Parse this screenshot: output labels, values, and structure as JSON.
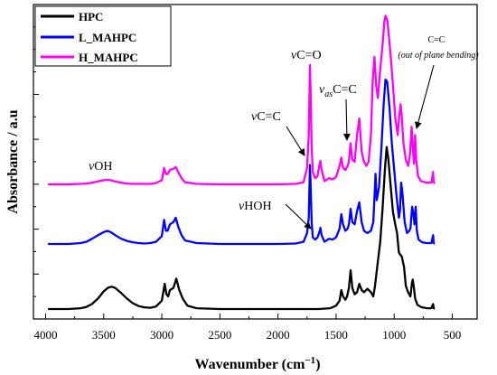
{
  "chart_data": {
    "type": "line",
    "title": "",
    "xlabel": "Wavenumber (cm",
    "xlabel_sup": "−1",
    "xlabel_close": ")",
    "ylabel": "Absorbance / a.u",
    "xlim": [
      4000,
      600
    ],
    "x_reversed": true,
    "x_ticks": [
      "4000",
      "3500",
      "3000",
      "2500",
      "2000",
      "1500",
      "1000",
      "500"
    ],
    "y_tick_labels": false,
    "legend_placement": "top-left",
    "series": [
      {
        "name": "HPC",
        "color": "#000000",
        "points": [
          [
            3980,
            0.0
          ],
          [
            3800,
            0.0
          ],
          [
            3700,
            0.02
          ],
          [
            3650,
            0.05
          ],
          [
            3600,
            0.12
          ],
          [
            3550,
            0.25
          ],
          [
            3500,
            0.42
          ],
          [
            3460,
            0.51
          ],
          [
            3430,
            0.53
          ],
          [
            3400,
            0.5
          ],
          [
            3350,
            0.38
          ],
          [
            3300,
            0.25
          ],
          [
            3250,
            0.14
          ],
          [
            3200,
            0.07
          ],
          [
            3150,
            0.04
          ],
          [
            3100,
            0.03
          ],
          [
            3050,
            0.06
          ],
          [
            3000,
            0.2
          ],
          [
            2975,
            0.6
          ],
          [
            2960,
            0.35
          ],
          [
            2945,
            0.3
          ],
          [
            2930,
            0.45
          ],
          [
            2900,
            0.5
          ],
          [
            2875,
            0.72
          ],
          [
            2850,
            0.45
          ],
          [
            2820,
            0.25
          ],
          [
            2780,
            0.08
          ],
          [
            2700,
            0.02
          ],
          [
            2500,
            0.0
          ],
          [
            2200,
            0.0
          ],
          [
            2000,
            0.0
          ],
          [
            1800,
            0.0
          ],
          [
            1650,
            0.0
          ],
          [
            1550,
            0.02
          ],
          [
            1500,
            0.08
          ],
          [
            1470,
            0.2
          ],
          [
            1455,
            0.45
          ],
          [
            1440,
            0.3
          ],
          [
            1420,
            0.22
          ],
          [
            1405,
            0.3
          ],
          [
            1390,
            0.5
          ],
          [
            1375,
            0.92
          ],
          [
            1360,
            0.5
          ],
          [
            1340,
            0.35
          ],
          [
            1320,
            0.4
          ],
          [
            1300,
            0.6
          ],
          [
            1280,
            0.45
          ],
          [
            1260,
            0.4
          ],
          [
            1230,
            0.48
          ],
          [
            1200,
            0.4
          ],
          [
            1180,
            0.3
          ],
          [
            1165,
            0.55
          ],
          [
            1150,
            0.9
          ],
          [
            1120,
            1.6
          ],
          [
            1100,
            2.4
          ],
          [
            1080,
            3.3
          ],
          [
            1065,
            3.85
          ],
          [
            1050,
            3.55
          ],
          [
            1030,
            2.9
          ],
          [
            1010,
            2.3
          ],
          [
            990,
            2.0
          ],
          [
            975,
            1.8
          ],
          [
            960,
            1.35
          ],
          [
            950,
            1.3
          ],
          [
            935,
            1.25
          ],
          [
            915,
            1.0
          ],
          [
            900,
            0.55
          ],
          [
            880,
            0.4
          ],
          [
            860,
            0.3
          ],
          [
            845,
            0.65
          ],
          [
            840,
            0.7
          ],
          [
            830,
            0.5
          ],
          [
            820,
            0.25
          ],
          [
            800,
            0.1
          ],
          [
            770,
            0.05
          ],
          [
            720,
            0.02
          ],
          [
            680,
            0.02
          ],
          [
            665,
            0.12
          ],
          [
            660,
            0.02
          ],
          [
            650,
            0.01
          ]
        ]
      },
      {
        "name": "L_MAHPC",
        "color": "#0000ff",
        "points": [
          [
            3980,
            0.0
          ],
          [
            3800,
            0.0
          ],
          [
            3700,
            0.02
          ],
          [
            3650,
            0.05
          ],
          [
            3600,
            0.12
          ],
          [
            3550,
            0.2
          ],
          [
            3500,
            0.27
          ],
          [
            3470,
            0.3
          ],
          [
            3440,
            0.27
          ],
          [
            3400,
            0.2
          ],
          [
            3350,
            0.12
          ],
          [
            3300,
            0.07
          ],
          [
            3250,
            0.04
          ],
          [
            3200,
            0.02
          ],
          [
            3150,
            0.01
          ],
          [
            3100,
            0.02
          ],
          [
            3050,
            0.05
          ],
          [
            3000,
            0.18
          ],
          [
            2980,
            0.55
          ],
          [
            2965,
            0.3
          ],
          [
            2950,
            0.3
          ],
          [
            2930,
            0.45
          ],
          [
            2900,
            0.5
          ],
          [
            2880,
            0.6
          ],
          [
            2860,
            0.4
          ],
          [
            2830,
            0.2
          ],
          [
            2800,
            0.08
          ],
          [
            2700,
            0.02
          ],
          [
            2500,
            0.0
          ],
          [
            2000,
            0.0
          ],
          [
            1850,
            0.01
          ],
          [
            1780,
            0.05
          ],
          [
            1750,
            0.25
          ],
          [
            1735,
            0.6
          ],
          [
            1725,
            1.8
          ],
          [
            1720,
            1.45
          ],
          [
            1710,
            0.5
          ],
          [
            1700,
            0.15
          ],
          [
            1680,
            0.1
          ],
          [
            1660,
            0.15
          ],
          [
            1640,
            0.3
          ],
          [
            1635,
            0.37
          ],
          [
            1625,
            0.2
          ],
          [
            1600,
            0.05
          ],
          [
            1560,
            0.12
          ],
          [
            1530,
            0.1
          ],
          [
            1500,
            0.15
          ],
          [
            1470,
            0.35
          ],
          [
            1455,
            0.68
          ],
          [
            1440,
            0.45
          ],
          [
            1420,
            0.3
          ],
          [
            1400,
            0.35
          ],
          [
            1390,
            0.45
          ],
          [
            1375,
            0.8
          ],
          [
            1360,
            0.5
          ],
          [
            1340,
            0.45
          ],
          [
            1320,
            0.75
          ],
          [
            1300,
            0.95
          ],
          [
            1280,
            0.5
          ],
          [
            1260,
            0.3
          ],
          [
            1230,
            0.25
          ],
          [
            1200,
            0.3
          ],
          [
            1180,
            0.5
          ],
          [
            1160,
            1.6
          ],
          [
            1150,
            1.0
          ],
          [
            1130,
            1.3
          ],
          [
            1110,
            2.2
          ],
          [
            1090,
            3.2
          ],
          [
            1075,
            3.75
          ],
          [
            1060,
            3.7
          ],
          [
            1040,
            3.1
          ],
          [
            1020,
            2.3
          ],
          [
            1000,
            1.7
          ],
          [
            980,
            1.1
          ],
          [
            960,
            0.6
          ],
          [
            950,
            0.75
          ],
          [
            940,
            1.4
          ],
          [
            930,
            1.2
          ],
          [
            910,
            0.5
          ],
          [
            890,
            0.25
          ],
          [
            870,
            0.3
          ],
          [
            860,
            0.35
          ],
          [
            845,
            0.85
          ],
          [
            835,
            0.7
          ],
          [
            825,
            0.45
          ],
          [
            815,
            0.85
          ],
          [
            805,
            0.3
          ],
          [
            790,
            0.1
          ],
          [
            760,
            0.04
          ],
          [
            720,
            0.02
          ],
          [
            680,
            0.02
          ],
          [
            665,
            0.2
          ],
          [
            660,
            0.02
          ],
          [
            650,
            0.01
          ]
        ]
      },
      {
        "name": "H_MAHPC",
        "color": "#ff00ff",
        "points": [
          [
            3980,
            0.0
          ],
          [
            3800,
            0.0
          ],
          [
            3700,
            0.01
          ],
          [
            3650,
            0.02
          ],
          [
            3600,
            0.04
          ],
          [
            3550,
            0.07
          ],
          [
            3500,
            0.1
          ],
          [
            3470,
            0.11
          ],
          [
            3440,
            0.1
          ],
          [
            3400,
            0.07
          ],
          [
            3350,
            0.04
          ],
          [
            3300,
            0.02
          ],
          [
            3250,
            0.01
          ],
          [
            3100,
            0.01
          ],
          [
            3050,
            0.03
          ],
          [
            3000,
            0.1
          ],
          [
            2980,
            0.4
          ],
          [
            2965,
            0.25
          ],
          [
            2950,
            0.25
          ],
          [
            2930,
            0.35
          ],
          [
            2900,
            0.38
          ],
          [
            2880,
            0.42
          ],
          [
            2860,
            0.3
          ],
          [
            2830,
            0.15
          ],
          [
            2800,
            0.05
          ],
          [
            2700,
            0.01
          ],
          [
            2500,
            0.0
          ],
          [
            2000,
            0.0
          ],
          [
            1850,
            0.01
          ],
          [
            1780,
            0.05
          ],
          [
            1750,
            0.4
          ],
          [
            1735,
            1.2
          ],
          [
            1725,
            2.9
          ],
          [
            1720,
            2.4
          ],
          [
            1710,
            0.9
          ],
          [
            1700,
            0.3
          ],
          [
            1680,
            0.15
          ],
          [
            1660,
            0.2
          ],
          [
            1645,
            0.45
          ],
          [
            1635,
            0.57
          ],
          [
            1625,
            0.35
          ],
          [
            1600,
            0.08
          ],
          [
            1560,
            0.15
          ],
          [
            1530,
            0.12
          ],
          [
            1500,
            0.18
          ],
          [
            1470,
            0.45
          ],
          [
            1455,
            0.65
          ],
          [
            1440,
            0.4
          ],
          [
            1420,
            0.35
          ],
          [
            1400,
            0.45
          ],
          [
            1390,
            0.55
          ],
          [
            1375,
            1.0
          ],
          [
            1360,
            0.6
          ],
          [
            1340,
            0.55
          ],
          [
            1320,
            1.2
          ],
          [
            1300,
            1.6
          ],
          [
            1280,
            0.8
          ],
          [
            1260,
            0.55
          ],
          [
            1240,
            0.45
          ],
          [
            1220,
            0.55
          ],
          [
            1200,
            1.2
          ],
          [
            1185,
            2.5
          ],
          [
            1170,
            3.1
          ],
          [
            1155,
            2.4
          ],
          [
            1140,
            2.1
          ],
          [
            1120,
            2.8
          ],
          [
            1100,
            3.4
          ],
          [
            1085,
            3.95
          ],
          [
            1075,
            4.1
          ],
          [
            1060,
            4.0
          ],
          [
            1045,
            3.6
          ],
          [
            1030,
            3.1
          ],
          [
            1010,
            2.4
          ],
          [
            990,
            1.6
          ],
          [
            970,
            1.2
          ],
          [
            955,
            1.7
          ],
          [
            945,
            1.95
          ],
          [
            935,
            1.65
          ],
          [
            920,
            1.0
          ],
          [
            900,
            0.6
          ],
          [
            880,
            0.45
          ],
          [
            865,
            0.7
          ],
          [
            850,
            1.4
          ],
          [
            840,
            0.9
          ],
          [
            830,
            0.5
          ],
          [
            820,
            1.2
          ],
          [
            810,
            0.6
          ],
          [
            795,
            0.2
          ],
          [
            770,
            0.08
          ],
          [
            720,
            0.04
          ],
          [
            680,
            0.04
          ],
          [
            665,
            0.3
          ],
          [
            660,
            0.05
          ],
          [
            650,
            0.02
          ]
        ]
      }
    ],
    "annotations": [
      {
        "id": "voh",
        "prefix": "v",
        "text": "OH"
      },
      {
        "id": "vco",
        "prefix": "v",
        "text": "C=O"
      },
      {
        "id": "vascc",
        "prefix": "v",
        "sub": "as",
        "text": "C=C"
      },
      {
        "id": "vcc",
        "prefix": "v",
        "text": "C=C"
      },
      {
        "id": "vhoh",
        "prefix": "v",
        "text": "HOH"
      },
      {
        "id": "ccoop",
        "text": "C=C",
        "note": "(out of plane bending)"
      }
    ]
  }
}
